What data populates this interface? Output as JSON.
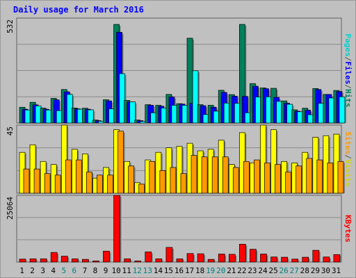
{
  "chart_data": [
    {
      "type": "bar",
      "title": "Daily usage for March 2016",
      "ylim": [
        0,
        532
      ],
      "ytick_label": "532",
      "categories": [
        "1",
        "2",
        "3",
        "4",
        "5",
        "6",
        "7",
        "8",
        "9",
        "10",
        "11",
        "12",
        "13",
        "14",
        "15",
        "16",
        "17",
        "18",
        "19",
        "20",
        "21",
        "22",
        "23",
        "24",
        "25",
        "26",
        "27",
        "28",
        "29",
        "30",
        "31"
      ],
      "weekend_days": [
        "5",
        "6",
        "12",
        "13",
        "19",
        "20",
        "26",
        "27"
      ],
      "series": [
        {
          "name": "Hits",
          "color": "#00805c",
          "values": [
            80,
            105,
            76,
            125,
            170,
            76,
            75,
            15,
            118,
            500,
            115,
            15,
            93,
            90,
            145,
            98,
            430,
            93,
            90,
            166,
            144,
            500,
            200,
            178,
            176,
            112,
            67,
            75,
            175,
            145,
            165
          ]
        },
        {
          "name": "Files",
          "color": "#0000ff",
          "values": [
            70,
            92,
            70,
            118,
            158,
            72,
            70,
            12,
            112,
            460,
            107,
            12,
            90,
            85,
            132,
            96,
            100,
            88,
            80,
            155,
            136,
            135,
            186,
            174,
            130,
            100,
            60,
            65,
            170,
            145,
            160
          ]
        },
        {
          "name": "Pages",
          "color": "#00ffff",
          "values": [
            66,
            87,
            66,
            63,
            145,
            70,
            67,
            9,
            72,
            250,
            107,
            8,
            52,
            76,
            90,
            90,
            265,
            43,
            60,
            101,
            100,
            52,
            132,
            133,
            110,
            95,
            57,
            42,
            100,
            127,
            133
          ]
        }
      ],
      "right_label_parts": [
        "Pages",
        "/",
        "Files",
        "/",
        "Hits"
      ],
      "right_label_colors": [
        "#00cfcf",
        "#505050",
        "#0000ff",
        "#505050",
        "#00805c"
      ]
    },
    {
      "type": "bar",
      "ylim": [
        0,
        45
      ],
      "ytick_label": "45",
      "categories": [
        "1",
        "2",
        "3",
        "4",
        "5",
        "6",
        "7",
        "8",
        "9",
        "10",
        "11",
        "12",
        "13",
        "14",
        "15",
        "16",
        "17",
        "18",
        "19",
        "20",
        "21",
        "22",
        "23",
        "24",
        "25",
        "26",
        "27",
        "28",
        "29",
        "30",
        "31"
      ],
      "series": [
        {
          "name": "Visits",
          "color": "#ffff00",
          "values": [
            27,
            32,
            21,
            19,
            45,
            29,
            26,
            10,
            17,
            42,
            21,
            7,
            22,
            27,
            30,
            31,
            33,
            28,
            29,
            35,
            19,
            40,
            20,
            45,
            42,
            21,
            20,
            27,
            37,
            38,
            39
          ]
        },
        {
          "name": "Sites",
          "color": "#ff9900",
          "values": [
            16,
            16,
            13,
            12,
            22,
            22,
            14,
            12,
            12,
            41,
            18,
            6,
            21,
            15,
            17,
            13,
            25,
            24,
            24,
            24,
            17,
            21,
            22,
            20,
            19,
            14,
            18,
            23,
            22,
            20,
            21
          ]
        }
      ],
      "right_label_parts": [
        "Sites",
        "/",
        "Visits"
      ],
      "right_label_colors": [
        "#ff9900",
        "#505050",
        "#d4d400"
      ]
    },
    {
      "type": "bar",
      "ylim": [
        0,
        25064
      ],
      "ytick_label": "25064",
      "categories": [
        "1",
        "2",
        "3",
        "4",
        "5",
        "6",
        "7",
        "8",
        "9",
        "10",
        "11",
        "12",
        "13",
        "14",
        "15",
        "16",
        "17",
        "18",
        "19",
        "20",
        "21",
        "22",
        "23",
        "24",
        "25",
        "26",
        "27",
        "28",
        "29",
        "30",
        "31"
      ],
      "series": [
        {
          "name": "KBytes",
          "color": "#ff0000",
          "values": [
            1100,
            1200,
            1200,
            3600,
            2200,
            1200,
            1000,
            400,
            4100,
            25064,
            1200,
            400,
            3800,
            1200,
            5500,
            1200,
            3200,
            3100,
            1000,
            3000,
            2900,
            6700,
            4800,
            3000,
            1900,
            1800,
            1100,
            1800,
            4400,
            1900,
            2800
          ]
        }
      ],
      "right_label_parts": [
        "KBytes"
      ],
      "right_label_colors": [
        "#ff0000"
      ]
    }
  ],
  "colors": {
    "frame_bg": "#c0c0c0",
    "plot_bg": "#c0c0c0",
    "weekday_label": "#000000",
    "weekend_label": "#008080",
    "title": "#0000ff"
  }
}
